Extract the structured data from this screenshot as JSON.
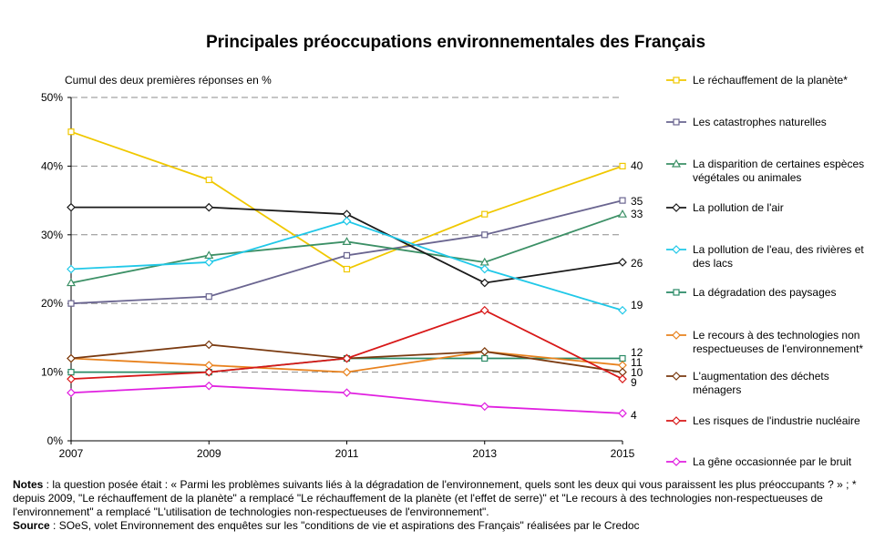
{
  "chart_data": {
    "type": "line",
    "title": "Principales préoccupations environnementales des Français",
    "ylabel": "Cumul des deux premières réponses en %",
    "x": [
      "2007",
      "2009",
      "2011",
      "2013",
      "2015"
    ],
    "ylim": [
      0,
      50
    ],
    "yticks": [
      "0%",
      "10%",
      "20%",
      "30%",
      "40%",
      "50%"
    ],
    "grid": true,
    "legend_position": "right",
    "series": [
      {
        "name": "Le réchauffement de la planète*",
        "legend_lines": [
          "Le réchauffement de la planète*"
        ],
        "color": "#f0c800",
        "marker": "square",
        "values": [
          45,
          38,
          25,
          33,
          40
        ],
        "end_label": "40"
      },
      {
        "name": "Les catastrophes naturelles",
        "legend_lines": [
          "Les catastrophes naturelles"
        ],
        "color": "#6a6590",
        "marker": "square",
        "values": [
          20,
          21,
          27,
          30,
          35
        ],
        "end_label": "35"
      },
      {
        "name": "La disparition de certaines espèces végétales ou animales",
        "legend_lines": [
          "La disparition de certaines espèces",
          "végétales ou animales"
        ],
        "color": "#3c9066",
        "marker": "triangle",
        "values": [
          23,
          27,
          29,
          26,
          33
        ],
        "end_label": "33"
      },
      {
        "name": "La pollution de l'air",
        "legend_lines": [
          "La pollution de l'air"
        ],
        "color": "#1a1a1a",
        "marker": "diamond",
        "values": [
          34,
          34,
          33,
          23,
          26
        ],
        "end_label": "26"
      },
      {
        "name": "La pollution de l'eau, des rivières et des lacs",
        "legend_lines": [
          "La pollution de l'eau, des rivières et",
          "des lacs"
        ],
        "color": "#20c8e8",
        "marker": "diamond",
        "values": [
          25,
          26,
          32,
          25,
          19
        ],
        "end_label": "19"
      },
      {
        "name": "La dégradation des paysages",
        "legend_lines": [
          "La dégradation des paysages"
        ],
        "color": "#2a8a66",
        "marker": "square",
        "values": [
          10,
          10,
          12,
          12,
          12
        ],
        "end_label": "12"
      },
      {
        "name": "Le recours à des technologies non respectueuses de l'environnement*",
        "legend_lines": [
          "Le recours à des technologies non",
          "respectueuses de l'environnement*"
        ],
        "color": "#e8821e",
        "marker": "diamond",
        "values": [
          12,
          11,
          10,
          13,
          11
        ],
        "end_label": "11"
      },
      {
        "name": "L'augmentation des déchets ménagers",
        "legend_lines": [
          "L'augmentation des déchets",
          "ménagers"
        ],
        "color": "#7a3a10",
        "marker": "diamond",
        "values": [
          12,
          14,
          12,
          13,
          10
        ],
        "end_label": "10"
      },
      {
        "name": "Les risques de l'industrie nucléaire",
        "legend_lines": [
          "Les risques de l'industrie nucléaire"
        ],
        "color": "#d81818",
        "marker": "diamond",
        "values": [
          9,
          10,
          12,
          19,
          9
        ],
        "end_label": "9"
      },
      {
        "name": "La gêne occasionnée par le bruit",
        "legend_lines": [
          "La gêne occasionnée par le bruit"
        ],
        "color": "#e020e0",
        "marker": "diamond",
        "values": [
          7,
          8,
          7,
          5,
          4
        ],
        "end_label": "4"
      }
    ]
  },
  "notes": {
    "notes_label": "Notes",
    "notes_text": " : la question posée était : « Parmi les problèmes suivants liés à la dégradation de l'environnement, quels sont les deux qui vous paraissent les plus préoccupants ? » ; * depuis 2009, \"Le réchauffement de la planète\" a remplacé \"Le réchauffement de la planète (et l'effet de serre)\" et \"Le recours à des technologies non-respectueuses de l'environnement\" a remplacé \"L'utilisation de technologies non-respectueuses de l'environnement\".",
    "source_label": "Source",
    "source_text": " : SOeS, volet Environnement des enquêtes sur les \"conditions de vie et aspirations des Français\" réalisées par le Credoc"
  }
}
